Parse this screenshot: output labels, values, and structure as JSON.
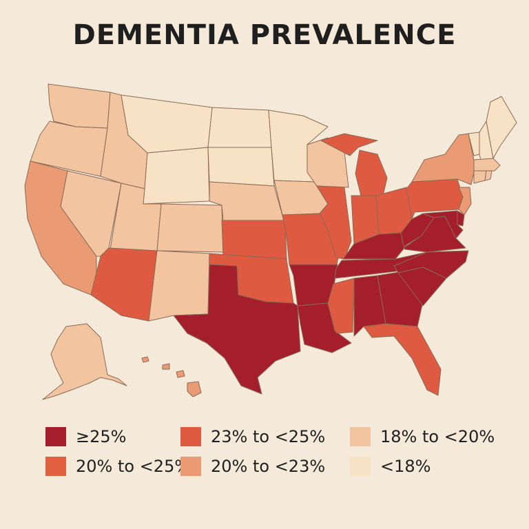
{
  "title": "DEMENTIA PREVALENCE",
  "colors": {
    "c25": "#a51e2b",
    "c23_25": "#de5a40",
    "c20_25": "#e0603f",
    "c20_23": "#eb9b74",
    "c18_20": "#f2c4a0",
    "c18": "#f8e2c5"
  },
  "legend": [
    {
      "key": "c25",
      "label": "≥25%"
    },
    {
      "key": "c23_25",
      "label": "23% to <25%"
    },
    {
      "key": "c18_20",
      "label": "18% to <20%"
    },
    {
      "key": "c20_25",
      "label": "20% to <25%"
    },
    {
      "key": "c20_23",
      "label": "20% to <23%"
    },
    {
      "key": "c18",
      "label": "<18%"
    }
  ],
  "states": {
    "WA": "c18_20",
    "OR": "c18_20",
    "CA": "c20_23",
    "NV": "c18_20",
    "ID": "c18_20",
    "MT": "c18",
    "WY": "c18",
    "UT": "c18_20",
    "AZ": "c23_25",
    "CO": "c18_20",
    "NM": "c18_20",
    "ND": "c18",
    "SD": "c18",
    "NE": "c18_20",
    "KS": "c23_25",
    "OK": "c23_25",
    "TX": "c25",
    "MN": "c18",
    "IA": "c18_20",
    "MO": "c23_25",
    "AR": "c25",
    "LA": "c25",
    "WI": "c18_20",
    "IL": "c23_25",
    "MI": "c23_25",
    "IN": "c23_25",
    "OH": "c23_25",
    "KY": "c25",
    "TN": "c25",
    "MS": "c23_25",
    "AL": "c25",
    "GA": "c25",
    "FL": "c23_25",
    "SC": "c25",
    "NC": "c25",
    "VA": "c25",
    "WV": "c25",
    "PA": "c23_25",
    "NY": "c20_23",
    "VT": "c18",
    "NH": "c18",
    "ME": "c18",
    "MA": "c18_20",
    "RI": "c18_20",
    "CT": "c18_20",
    "NJ": "c20_23",
    "DE": "c25",
    "MD": "c25",
    "AK": "c18_20",
    "HI": "c20_23"
  }
}
